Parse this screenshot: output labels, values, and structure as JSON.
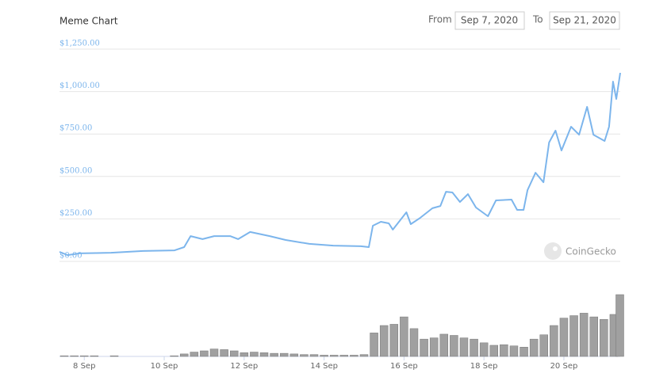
{
  "controls": {
    "from_label": "From",
    "from_value": "Sep 7, 2020",
    "to_label": "To",
    "to_value": "Sep 21, 2020"
  },
  "chart_data": {
    "type": "line",
    "title": "Meme Chart",
    "watermark": "CoinGecko",
    "color": "#7cb5ec",
    "volume_color": "#a0a0a0",
    "grid": true,
    "xlim": [
      7.38,
      21.41
    ],
    "xticks": [
      {
        "value": 8,
        "label": "8 Sep"
      },
      {
        "value": 10,
        "label": "10 Sep"
      },
      {
        "value": 12,
        "label": "12 Sep"
      },
      {
        "value": 14,
        "label": "14 Sep"
      },
      {
        "value": 16,
        "label": "16 Sep"
      },
      {
        "value": 18,
        "label": "18 Sep"
      },
      {
        "value": 20,
        "label": "20 Sep"
      }
    ],
    "ylim": [
      0,
      1250
    ],
    "yticks": [
      {
        "value": 0,
        "label": "$0.00"
      },
      {
        "value": 250,
        "label": "$250.00"
      },
      {
        "value": 500,
        "label": "$500.00"
      },
      {
        "value": 750,
        "label": "$750.00"
      },
      {
        "value": 1000,
        "label": "$1,000.00"
      },
      {
        "value": 1250,
        "label": "$1,250.00"
      }
    ],
    "price": {
      "x": [
        7.38,
        7.58,
        7.88,
        8.67,
        9.47,
        10.26,
        10.5,
        10.66,
        10.96,
        11.25,
        11.65,
        11.85,
        12.15,
        12.64,
        13.04,
        13.63,
        14.23,
        14.92,
        15.12,
        15.22,
        15.42,
        15.62,
        15.72,
        16.06,
        16.17,
        16.41,
        16.71,
        16.91,
        17.05,
        17.21,
        17.4,
        17.6,
        17.8,
        18.1,
        18.3,
        18.69,
        18.83,
        18.99,
        19.09,
        19.29,
        19.49,
        19.63,
        19.79,
        19.94,
        20.18,
        20.38,
        20.58,
        20.74,
        21.02,
        21.13,
        21.23,
        21.31,
        21.41
      ],
      "values": [
        56,
        37,
        47,
        51,
        61,
        65,
        84,
        149,
        131,
        149,
        149,
        131,
        173,
        149,
        126,
        103,
        93,
        89,
        84,
        210,
        233,
        224,
        187,
        289,
        219,
        257,
        313,
        326,
        410,
        406,
        350,
        396,
        317,
        266,
        359,
        364,
        303,
        303,
        420,
        522,
        466,
        700,
        770,
        653,
        793,
        746,
        910,
        746,
        709,
        793,
        1059,
        956,
        1110
      ]
    },
    "volume_ylim": [
      0,
      100
    ],
    "volume": {
      "x": [
        7.5,
        7.75,
        8,
        8.25,
        8.5,
        8.75,
        9,
        9.25,
        9.5,
        9.75,
        10,
        10.25,
        10.5,
        10.75,
        11,
        11.25,
        11.5,
        11.75,
        12,
        12.25,
        12.5,
        12.75,
        13,
        13.25,
        13.5,
        13.75,
        14,
        14.25,
        14.5,
        14.75,
        15,
        15.25,
        15.5,
        15.75,
        16,
        16.25,
        16.5,
        16.75,
        17,
        17.25,
        17.5,
        17.75,
        18,
        18.25,
        18.5,
        18.75,
        19,
        19.25,
        19.5,
        19.75,
        20,
        20.25,
        20.5,
        20.75,
        21,
        21.25,
        21.4
      ],
      "values": [
        1,
        1,
        1,
        1,
        0,
        1,
        0,
        0,
        0,
        0,
        0,
        1,
        4,
        7,
        9,
        12,
        11,
        9,
        6,
        7,
        6,
        5,
        5,
        4,
        3,
        3,
        2,
        2,
        2,
        2,
        3,
        38,
        50,
        52,
        64,
        45,
        28,
        30,
        36,
        34,
        30,
        28,
        22,
        18,
        19,
        17,
        15,
        28,
        35,
        50,
        62,
        66,
        70,
        64,
        60,
        68,
        100
      ]
    }
  }
}
